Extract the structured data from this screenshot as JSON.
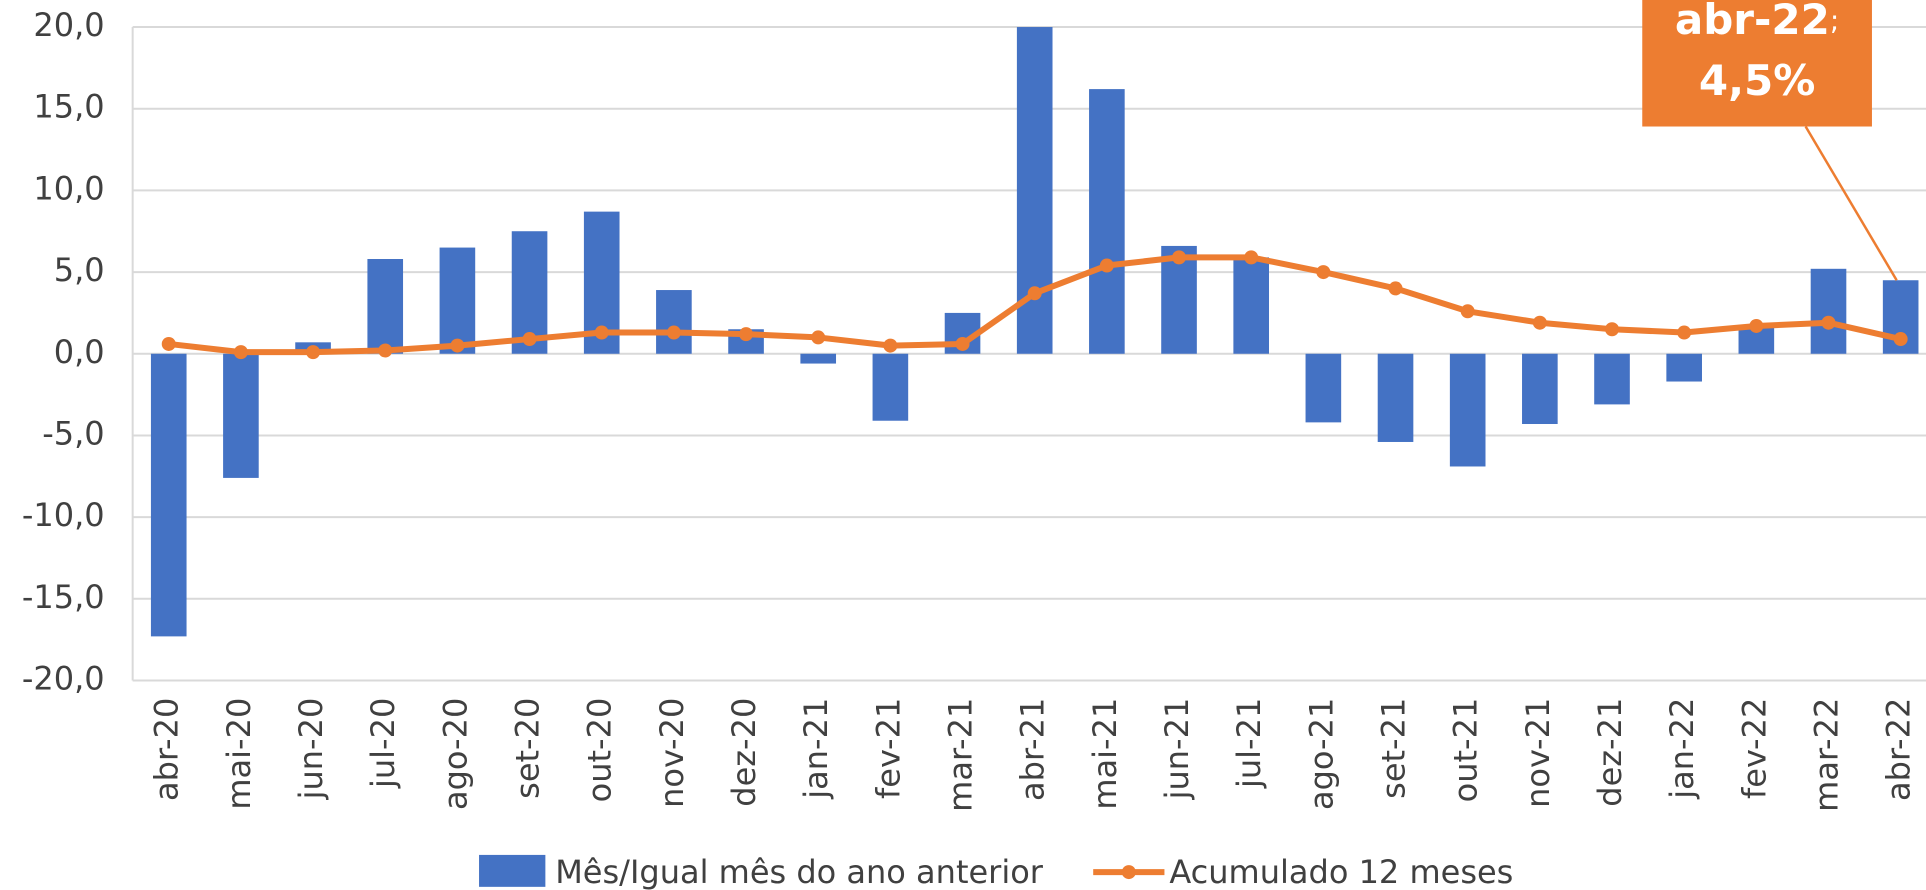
{
  "chart_data": {
    "type": "bar_line",
    "categories": [
      "abr-20",
      "mai-20",
      "jun-20",
      "jul-20",
      "ago-20",
      "set-20",
      "out-20",
      "nov-20",
      "dez-20",
      "jan-21",
      "fev-21",
      "mar-21",
      "abr-21",
      "mai-21",
      "jun-21",
      "jul-21",
      "ago-21",
      "set-21",
      "out-21",
      "nov-21",
      "dez-21",
      "jan-22",
      "fev-22",
      "mar-22",
      "abr-22"
    ],
    "series": [
      {
        "name": "Mês/Igual mês do ano anterior",
        "type": "bar",
        "color": "#4472c4",
        "values": [
          -17.3,
          -7.6,
          0.7,
          5.8,
          6.5,
          7.5,
          8.7,
          3.9,
          1.5,
          -0.6,
          -4.1,
          2.5,
          20.0,
          16.2,
          6.6,
          5.9,
          -4.2,
          -5.4,
          -6.9,
          -4.3,
          -3.1,
          -1.7,
          1.7,
          5.2,
          4.5
        ]
      },
      {
        "name": "Acumulado 12 meses",
        "type": "line",
        "color": "#ed7d31",
        "values": [
          0.6,
          0.1,
          0.1,
          0.2,
          0.5,
          0.9,
          1.3,
          1.3,
          1.2,
          1.0,
          0.5,
          0.6,
          3.7,
          5.4,
          5.9,
          5.9,
          5.0,
          4.0,
          2.6,
          1.9,
          1.5,
          1.3,
          1.7,
          1.9,
          0.9
        ]
      }
    ],
    "ylim": [
      -20,
      20
    ],
    "yticks": [
      {
        "value": 20,
        "label": "20,0"
      },
      {
        "value": 15,
        "label": "15,0"
      },
      {
        "value": 10,
        "label": "10,0"
      },
      {
        "value": 5,
        "label": "5,0"
      },
      {
        "value": 0,
        "label": "0,0"
      },
      {
        "value": -5,
        "label": "-5,0"
      },
      {
        "value": -10,
        "label": "-10,0"
      },
      {
        "value": -15,
        "label": "-15,0"
      },
      {
        "value": -20,
        "label": "-20,0"
      }
    ],
    "grid": true,
    "legend": "bottom",
    "annotation": {
      "label": "abr-22",
      "separator": ";",
      "value": "4,5%",
      "color": "#ed7d31"
    }
  }
}
